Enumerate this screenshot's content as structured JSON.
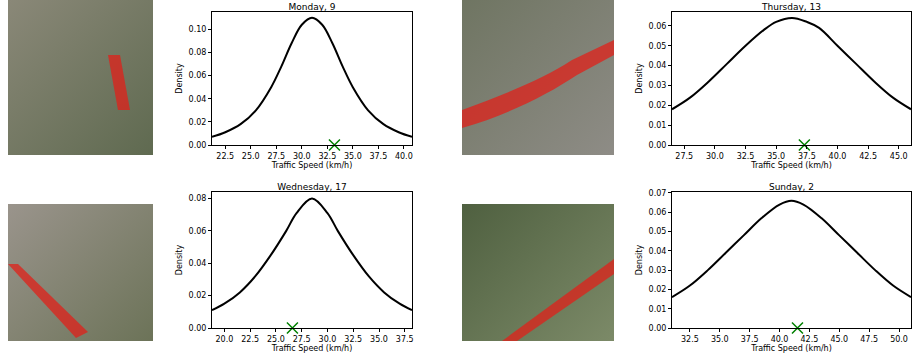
{
  "chart_data": [
    {
      "type": "line",
      "title": "Monday, 9",
      "x_label": "Traffic Speed (km/h)",
      "y_label": "Density",
      "grid": false,
      "xlim": [
        21.2,
        40.8
      ],
      "ylim": [
        0,
        0.115
      ],
      "xticks": [
        22.5,
        {
          "value": 25,
          "label": "25.0"
        },
        27.5,
        {
          "value": 30,
          "label": "30.0"
        },
        32.5,
        {
          "value": 35,
          "label": "35.0"
        },
        37.5,
        {
          "value": 40,
          "label": "40.0"
        }
      ],
      "yticks": [
        {
          "value": 0,
          "label": "0.00"
        },
        {
          "value": 0.02,
          "label": "0.02"
        },
        {
          "value": 0.04,
          "label": "0.04"
        },
        {
          "value": 0.06,
          "label": "0.06"
        },
        {
          "value": 0.08,
          "label": "0.08"
        },
        {
          "value": 0.1,
          "label": "0.10"
        }
      ],
      "series": [
        {
          "type": "line",
          "color": "#000000",
          "x": [
            21.2,
            22.5,
            24,
            25.5,
            27,
            28,
            29,
            30,
            31,
            32,
            33,
            34,
            35,
            36.5,
            38,
            39.5,
            40.8
          ],
          "values": [
            0.007,
            0.011,
            0.018,
            0.03,
            0.05,
            0.068,
            0.088,
            0.104,
            0.11,
            0.104,
            0.088,
            0.068,
            0.05,
            0.03,
            0.018,
            0.011,
            0.007
          ]
        },
        {
          "type": "scatter",
          "marker": "x",
          "color": "#008000",
          "x": [
            33.2
          ],
          "values": [
            0
          ]
        }
      ]
    },
    {
      "type": "line",
      "title": "Thursday, 13",
      "x_label": "Traffic Speed (km/h)",
      "y_label": "Density",
      "grid": false,
      "xlim": [
        26.5,
        46
      ],
      "ylim": [
        0,
        0.067
      ],
      "xticks": [
        27.5,
        {
          "value": 30,
          "label": "30.0"
        },
        32.5,
        {
          "value": 35,
          "label": "35.0"
        },
        37.5,
        {
          "value": 40,
          "label": "40.0"
        },
        42.5,
        {
          "value": 45,
          "label": "45.0"
        }
      ],
      "yticks": [
        {
          "value": 0,
          "label": "0.00"
        },
        0.01,
        0.02,
        0.03,
        0.04,
        0.05,
        0.06
      ],
      "series": [
        {
          "type": "line",
          "color": "#000000",
          "x": [
            26.5,
            28,
            29.5,
            31,
            32.5,
            34,
            35,
            36.3,
            37.5,
            38.5,
            40,
            41.5,
            43,
            44.5,
            46
          ],
          "values": [
            0.018,
            0.024,
            0.032,
            0.041,
            0.05,
            0.058,
            0.062,
            0.064,
            0.062,
            0.059,
            0.05,
            0.041,
            0.032,
            0.024,
            0.018
          ]
        },
        {
          "type": "scatter",
          "marker": "x",
          "color": "#008000",
          "x": [
            37.3
          ],
          "values": [
            0
          ]
        }
      ]
    },
    {
      "type": "line",
      "title": "Wednesday, 17",
      "x_label": "Traffic Speed (km/h)",
      "y_label": "Density",
      "grid": false,
      "xlim": [
        18.8,
        38.2
      ],
      "ylim": [
        0,
        0.084
      ],
      "xticks": [
        {
          "value": 20,
          "label": "20.0"
        },
        22.5,
        {
          "value": 25,
          "label": "25.0"
        },
        27.5,
        {
          "value": 30,
          "label": "30.0"
        },
        32.5,
        {
          "value": 35,
          "label": "35.0"
        },
        37.5
      ],
      "yticks": [
        {
          "value": 0,
          "label": "0.00"
        },
        0.02,
        0.04,
        0.06,
        0.08
      ],
      "series": [
        {
          "type": "line",
          "color": "#000000",
          "x": [
            18.8,
            20,
            21.5,
            23,
            24.5,
            26,
            27,
            28.5,
            30,
            31,
            32.5,
            34,
            35.5,
            37,
            38.2
          ],
          "values": [
            0.011,
            0.015,
            0.022,
            0.032,
            0.045,
            0.06,
            0.071,
            0.08,
            0.071,
            0.06,
            0.045,
            0.032,
            0.022,
            0.015,
            0.011
          ]
        },
        {
          "type": "scatter",
          "marker": "x",
          "color": "#008000",
          "x": [
            26.6
          ],
          "values": [
            0
          ]
        }
      ]
    },
    {
      "type": "line",
      "title": "Sunday, 2",
      "x_label": "Traffic Speed (km/h)",
      "y_label": "Density",
      "grid": false,
      "xlim": [
        31,
        51
      ],
      "ylim": [
        0,
        0.0705
      ],
      "xticks": [
        32.5,
        {
          "value": 35,
          "label": "35.0"
        },
        37.5,
        {
          "value": 40,
          "label": "40.0"
        },
        42.5,
        {
          "value": 45,
          "label": "45.0"
        },
        47.5,
        {
          "value": 50,
          "label": "50.0"
        }
      ],
      "yticks": [
        {
          "value": 0,
          "label": "0.00"
        },
        0.01,
        0.02,
        0.03,
        0.04,
        0.05,
        0.06,
        0.07
      ],
      "series": [
        {
          "type": "line",
          "color": "#000000",
          "x": [
            31,
            32.5,
            34,
            35.5,
            37,
            38.5,
            40,
            41,
            42,
            43.5,
            45,
            46.5,
            48,
            49.5,
            51
          ],
          "values": [
            0.016,
            0.022,
            0.03,
            0.039,
            0.048,
            0.057,
            0.064,
            0.066,
            0.064,
            0.057,
            0.048,
            0.039,
            0.03,
            0.022,
            0.016
          ]
        },
        {
          "type": "scatter",
          "marker": "x",
          "color": "#008000",
          "x": [
            41.5
          ],
          "values": [
            0
          ]
        }
      ]
    }
  ]
}
